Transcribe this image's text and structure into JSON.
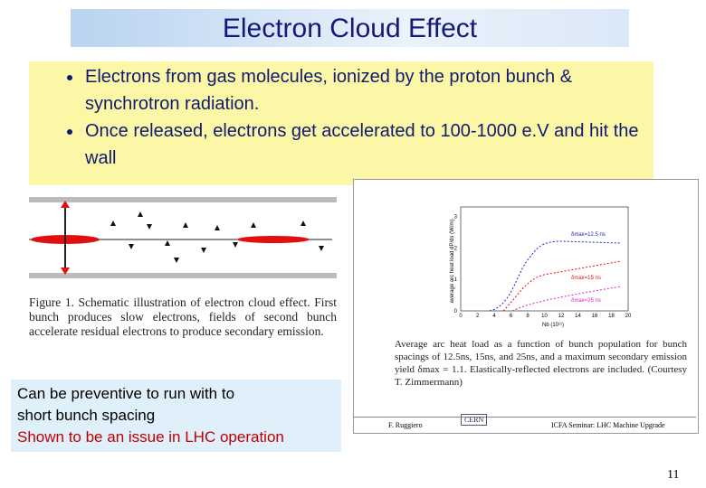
{
  "header": {
    "title": "Electron Cloud Effect"
  },
  "bullets": [
    "Electrons from gas molecules, ionized by the proton bunch & synchrotron radiation.",
    "Once released,  electrons get accelerated to 100-1000 e.V and hit the wall"
  ],
  "left_figure": {
    "caption": "Figure 1.  Schematic illustration of electron cloud effect. First bunch produces slow electrons, fields of second bunch accelerate residual electrons to produce secondary emission."
  },
  "right_figure": {
    "plot": {
      "y_label": "average arc heat load dP/ds (W/m)",
      "x_label": "Nb (10¹¹)",
      "xticks": [
        "0",
        "2",
        "4",
        "6",
        "8",
        "10",
        "12",
        "14",
        "16",
        "18",
        "20"
      ],
      "yticks": [
        "0",
        "1",
        "2",
        "3"
      ],
      "curve_labels": [
        "δmax=12.5 ns",
        "δmax=15 ns",
        "δmax=25 ns"
      ]
    },
    "caption": "Average arc heat load as a function of bunch population for bunch spacings of 12.5ns, 15ns, and 25ns, and a maximum secondary emission yield δmax = 1.1. Elastically-reflected electrons are included. (Courtesy T. Zimmermann)",
    "footer": [
      "F. Ruggiero",
      "CERN",
      "ICFA Seminar: LHC Machine Upgrade"
    ]
  },
  "note": {
    "lines": [
      "Can be preventive to run with to",
      "short bunch spacing"
    ],
    "highlight": "Shown to be an issue in LHC operation"
  },
  "page_number": "11"
}
